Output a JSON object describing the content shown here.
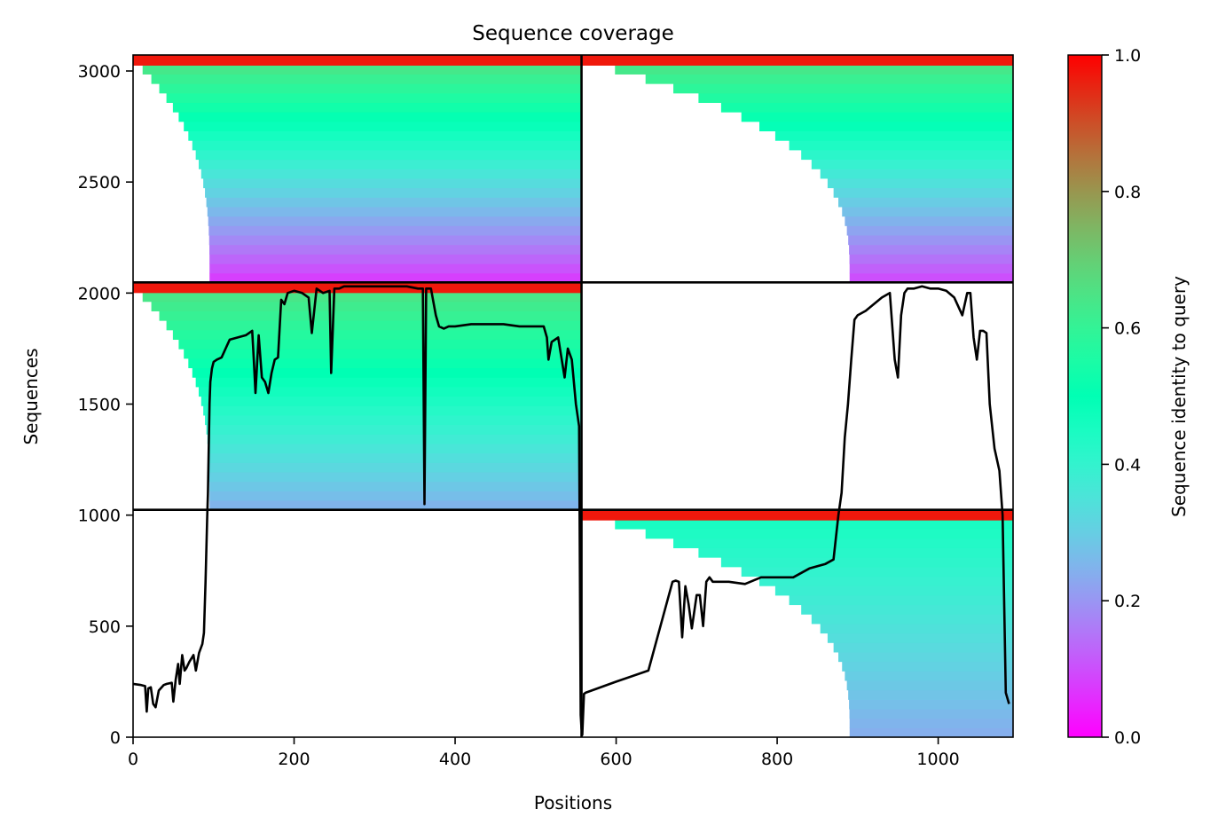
{
  "chart_data": {
    "type": "heatmap",
    "title": "Sequence coverage",
    "xlabel": "Positions",
    "ylabel": "Sequences",
    "xlim": [
      0,
      1093
    ],
    "ylim": [
      0,
      3072
    ],
    "xticks": [
      0,
      200,
      400,
      600,
      800,
      1000
    ],
    "yticks": [
      0,
      500,
      1000,
      1500,
      2000,
      2500,
      3000
    ],
    "colorbar": {
      "label": "Sequence identity to query",
      "ticks": [
        0.0,
        0.2,
        0.4,
        0.6,
        0.8,
        1.0
      ],
      "tick_labels": [
        "0.0",
        "0.2",
        "0.4",
        "0.6",
        "0.8",
        "1.0"
      ],
      "colormap": "rainbow",
      "range": [
        0,
        1
      ]
    },
    "chain_boundaries": {
      "x": [
        557
      ],
      "y": [
        1024,
        2048
      ]
    },
    "coverage_blocks": [
      {
        "x0": 0,
        "x1": 557,
        "y0": 2048,
        "y1": 3072,
        "lead_start": 95,
        "ident_bottom": 0.08,
        "ident_top": 0.66
      },
      {
        "x0": 557,
        "x1": 1093,
        "y0": 2048,
        "y1": 3072,
        "lead_start": 890,
        "ident_bottom": 0.1,
        "ident_top": 0.66
      },
      {
        "x0": 0,
        "x1": 557,
        "y0": 1024,
        "y1": 2048,
        "lead_start": 95,
        "ident_bottom": 0.25,
        "ident_top": 0.66
      },
      {
        "x0": 557,
        "x1": 1093,
        "y0": 0,
        "y1": 1024,
        "lead_start": 890,
        "ident_bottom": 0.24,
        "ident_top": 0.46
      }
    ],
    "coverage_line": {
      "name": "",
      "x": [
        0,
        10,
        15,
        17,
        19,
        22,
        25,
        28,
        32,
        38,
        42,
        48,
        50,
        53,
        56,
        58,
        61,
        64,
        66,
        70,
        75,
        78,
        82,
        86,
        88,
        90,
        92,
        93,
        94,
        95,
        96,
        98,
        100,
        104,
        110,
        120,
        130,
        140,
        148,
        150,
        152,
        156,
        160,
        164,
        168,
        172,
        176,
        180,
        184,
        188,
        192,
        200,
        210,
        218,
        222,
        228,
        236,
        244,
        246,
        250,
        256,
        262,
        268,
        272,
        280,
        300,
        320,
        340,
        354,
        360,
        362,
        364,
        366,
        370,
        376,
        380,
        386,
        392,
        400,
        420,
        440,
        460,
        480,
        500,
        510,
        514,
        516,
        520,
        528,
        536,
        540,
        545,
        550,
        554,
        556,
        557,
        558,
        560,
        562,
        600,
        640,
        670,
        674,
        678,
        682,
        686,
        690,
        694,
        700,
        704,
        708,
        712,
        716,
        720,
        740,
        760,
        780,
        800,
        820,
        840,
        860,
        870,
        876,
        880,
        884,
        888,
        892,
        896,
        900,
        910,
        920,
        930,
        940,
        946,
        950,
        954,
        958,
        962,
        970,
        980,
        990,
        1000,
        1010,
        1020,
        1030,
        1036,
        1040,
        1044,
        1048,
        1052,
        1056,
        1060,
        1064,
        1070,
        1076,
        1080,
        1084,
        1088,
        1090,
        1093
      ],
      "y": [
        240,
        235,
        230,
        115,
        220,
        225,
        150,
        135,
        210,
        235,
        240,
        245,
        160,
        260,
        330,
        240,
        370,
        300,
        310,
        340,
        370,
        300,
        380,
        420,
        470,
        700,
        980,
        1100,
        1300,
        1500,
        1600,
        1660,
        1690,
        1700,
        1710,
        1790,
        1800,
        1810,
        1830,
        1700,
        1550,
        1810,
        1620,
        1600,
        1550,
        1640,
        1700,
        1710,
        1970,
        1950,
        2000,
        2010,
        2000,
        1980,
        1820,
        2020,
        2000,
        2010,
        1640,
        2020,
        2020,
        2030,
        2030,
        2030,
        2030,
        2030,
        2030,
        2030,
        2020,
        2020,
        1050,
        2020,
        2020,
        2020,
        1900,
        1850,
        1840,
        1850,
        1850,
        1860,
        1860,
        1860,
        1850,
        1850,
        1850,
        1800,
        1700,
        1780,
        1800,
        1620,
        1750,
        1700,
        1500,
        1400,
        100,
        40,
        10,
        195,
        200,
        250,
        300,
        700,
        705,
        700,
        450,
        680,
        600,
        490,
        640,
        640,
        500,
        700,
        720,
        700,
        700,
        690,
        720,
        720,
        720,
        760,
        780,
        800,
        1000,
        1100,
        1350,
        1500,
        1700,
        1880,
        1900,
        1920,
        1950,
        1980,
        2000,
        1700,
        1620,
        1900,
        2000,
        2020,
        2020,
        2030,
        2020,
        2020,
        2010,
        1980,
        1900,
        2000,
        2000,
        1800,
        1700,
        1830,
        1830,
        1820,
        1500,
        1300,
        1200,
        1000,
        200,
        150
      ]
    }
  }
}
